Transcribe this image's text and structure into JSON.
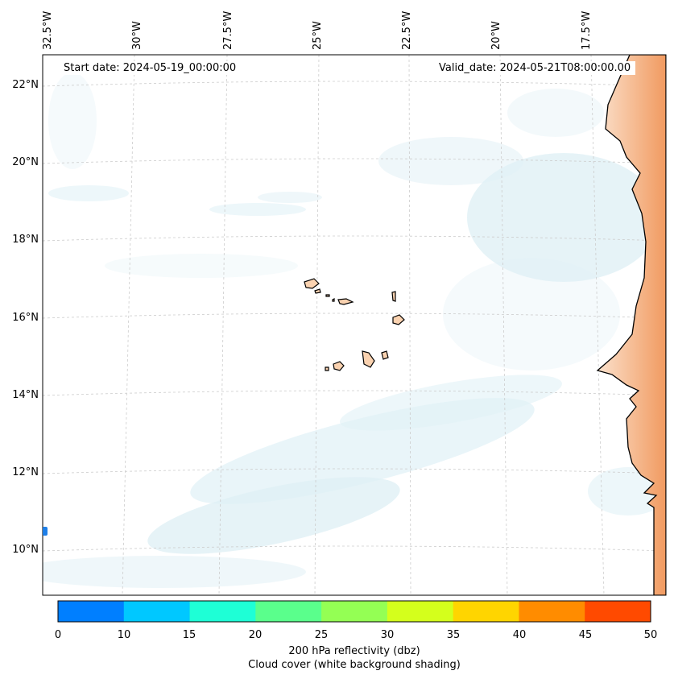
{
  "map": {
    "start_date": "Start date: 2024-05-19_00:00:00",
    "valid_date": "Valid_date: 2024-05-21T08:00:00.00",
    "lon_labels": [
      "32.5°W",
      "30°W",
      "27.5°W",
      "25°W",
      "22.5°W",
      "20°W",
      "17.5°W"
    ],
    "lat_labels": [
      "22°N",
      "20°N",
      "18°N",
      "16°N",
      "14°N",
      "12°N",
      "10°N"
    ],
    "region": "Cape Verde islands and West African coast",
    "colors": {
      "land": "#fad2b0",
      "land_warm": "#f3a470",
      "cloud": "#d6ecf3",
      "grid": "#cccccc",
      "coast": "#000000"
    }
  },
  "colorbar": {
    "ticks": [
      "0",
      "10",
      "15",
      "20",
      "25",
      "30",
      "35",
      "40",
      "45",
      "50"
    ],
    "colors": [
      "#007fff",
      "#00c8ff",
      "#1effd6",
      "#5aff8c",
      "#94ff54",
      "#d4ff1c",
      "#ffd500",
      "#ff8c00",
      "#ff4a00"
    ],
    "label": "200 hPa reflectivity (dbz)",
    "sublabel": "Cloud cover (white background shading)"
  }
}
